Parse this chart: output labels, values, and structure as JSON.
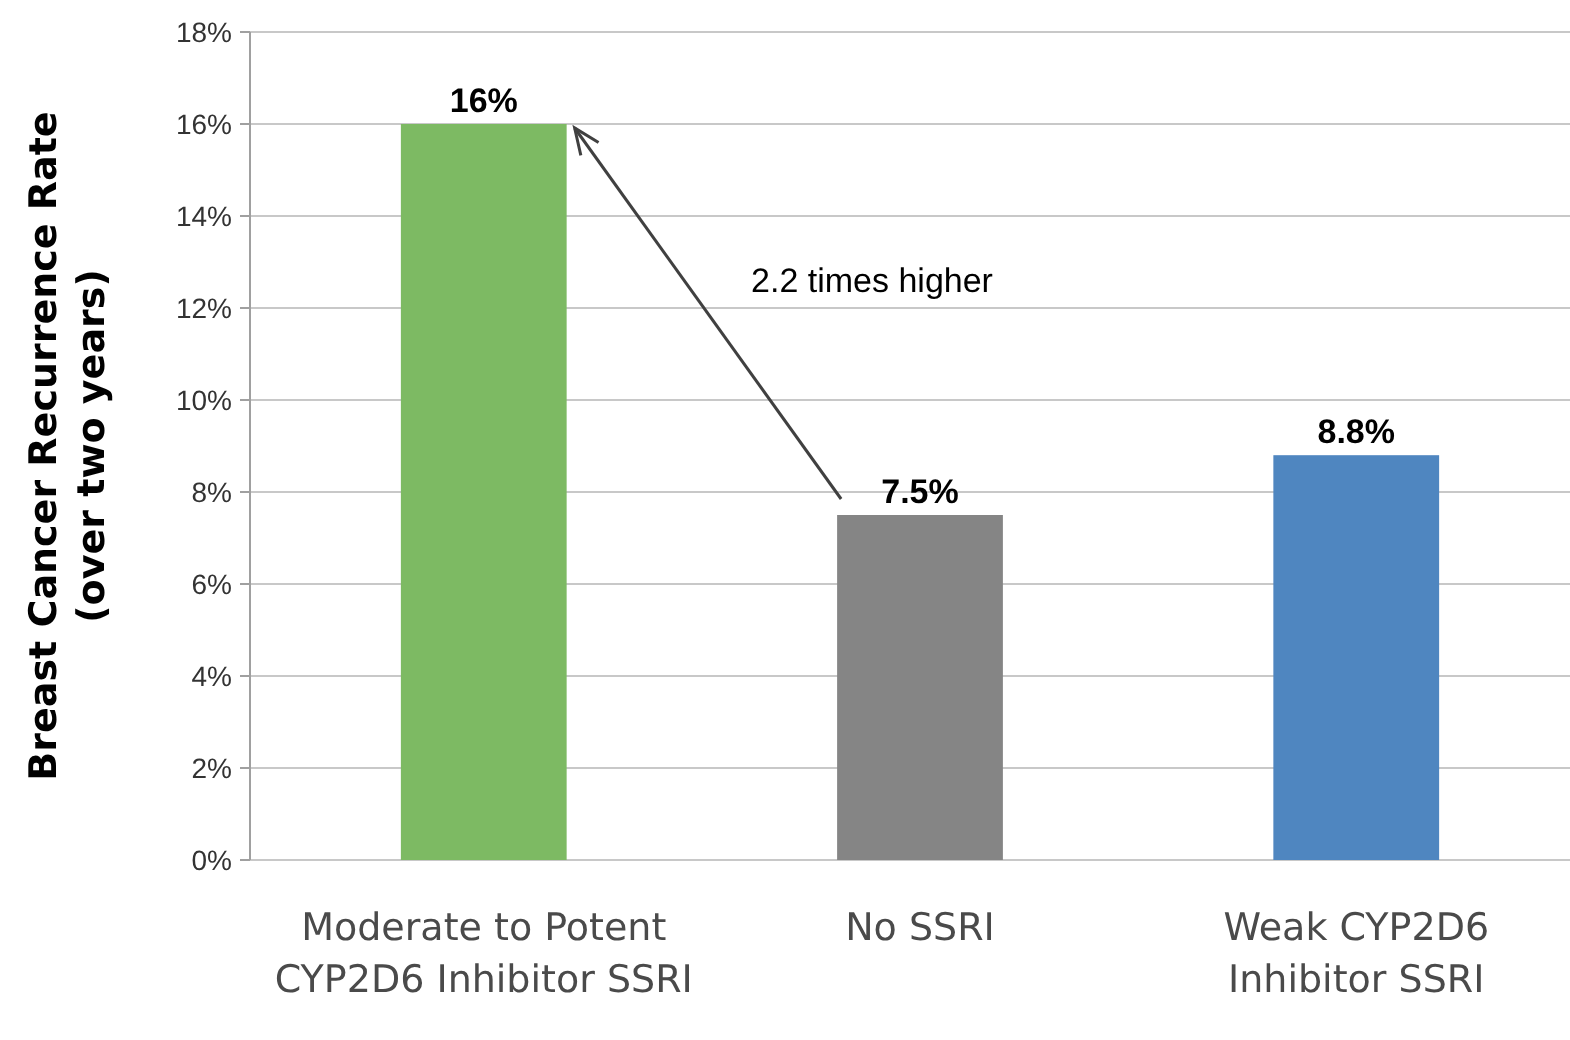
{
  "chart_data": {
    "type": "bar",
    "ylabel": "Breast Cancer Recurrence Rate\n(over two years)",
    "categories": [
      "Moderate to Potent CYP2D6 Inhibitor SSRI",
      "No SSRI",
      "Weak CYP2D6 Inhibitor SSRI"
    ],
    "values": [
      16,
      7.5,
      8.8
    ],
    "colors": [
      "#7dba63",
      "#858585",
      "#4f86c0"
    ],
    "value_labels": [
      "16%",
      "7.5%",
      "8.8%"
    ],
    "ylim": [
      0,
      18
    ],
    "yticks": [
      {
        "value": 0,
        "label": "0%"
      },
      {
        "value": 2,
        "label": "2%"
      },
      {
        "value": 4,
        "label": "4%"
      },
      {
        "value": 6,
        "label": "6%"
      },
      {
        "value": 8,
        "label": "8%"
      },
      {
        "value": 10,
        "label": "10%"
      },
      {
        "value": 12,
        "label": "12%"
      },
      {
        "value": 14,
        "label": "14%"
      },
      {
        "value": 16,
        "label": "16%"
      },
      {
        "value": 18,
        "label": "18%"
      }
    ],
    "grid": "y",
    "annotations": [
      "2.2 times higher"
    ]
  }
}
